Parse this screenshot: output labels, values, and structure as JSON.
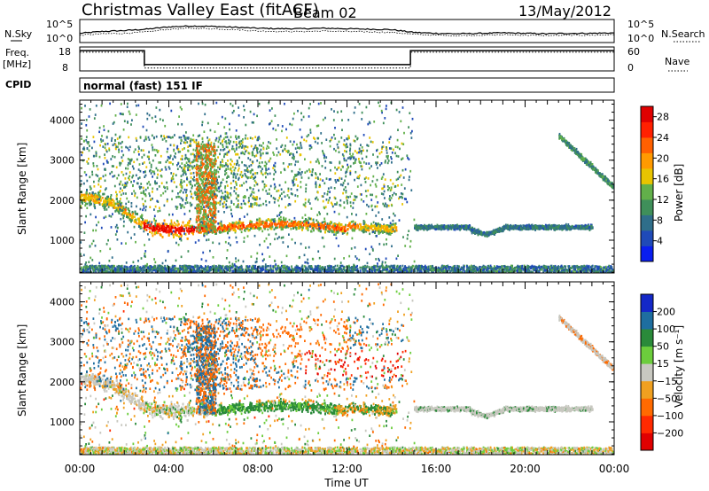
{
  "header": {
    "title": "Christmas Valley East (fitACF)",
    "beam": "Beam 02",
    "date": "13/May/2012"
  },
  "top_panels": {
    "nsky_label": "N.Sky",
    "nsky_ticks": [
      "10^5",
      "10^0"
    ],
    "nsearch_label": "N.Search",
    "nsearch_ticks": [
      "10^5",
      "10^0"
    ],
    "freq_label_1": "Freq.",
    "freq_label_2": "[MHz]",
    "freq_ticks": [
      "18",
      "8"
    ],
    "nave_label": "Nave",
    "nave_ticks": [
      "60",
      "0"
    ],
    "cpid_label": "CPID",
    "cpid_text": "normal (fast) 151 IF"
  },
  "chart_data": [
    {
      "type": "heatmap",
      "panel": "power",
      "ylabel": "Slant Range [km]",
      "xlabel": "Time UT",
      "x_ticks": [
        "00:00",
        "04:00",
        "08:00",
        "12:00",
        "16:00",
        "20:00",
        "00:00"
      ],
      "xlim": [
        0,
        24
      ],
      "y_ticks": [
        "1000",
        "2000",
        "3000",
        "4000"
      ],
      "ylim": [
        180,
        4500
      ],
      "colorbar": {
        "label": "Power [dB]",
        "ticks": [
          "4",
          "8",
          "12",
          "16",
          "20",
          "24",
          "28"
        ],
        "range": [
          0,
          30
        ],
        "colors": [
          "#0a1ef0",
          "#1f4ab8",
          "#2f6e8a",
          "#3f8f5a",
          "#62b04a",
          "#e8c400",
          "#ff9a00",
          "#ff6000",
          "#ff2000",
          "#e00000"
        ]
      }
    },
    {
      "type": "heatmap",
      "panel": "velocity",
      "ylabel": "Slant Range [km]",
      "xlabel": "Time UT",
      "x_ticks": [
        "00:00",
        "04:00",
        "08:00",
        "12:00",
        "16:00",
        "20:00",
        "00:00"
      ],
      "xlim": [
        0,
        24
      ],
      "y_ticks": [
        "1000",
        "2000",
        "3000",
        "4000"
      ],
      "ylim": [
        180,
        4500
      ],
      "colorbar": {
        "label": "Velocity [m s⁻¹]",
        "ticks": [
          "200",
          "100",
          "50",
          "15",
          "−15",
          "−50",
          "−100",
          "−200"
        ],
        "colors": [
          "#1428c8",
          "#1e6ea0",
          "#2a8a3a",
          "#6ccd3c",
          "#c8c8c0",
          "#f0a020",
          "#ff6a00",
          "#ff2a00",
          "#e00000"
        ]
      }
    },
    {
      "type": "line",
      "panel": "nsky-nsearch",
      "series": [
        {
          "values": [
            2.0,
            2.4,
            2.6,
            2.9,
            3.4,
            3.6,
            3.5,
            3.3,
            3.1,
            3.0,
            3.0,
            3.1,
            3.0,
            2.9,
            2.8,
            2.2,
            2.0,
            1.9,
            2.0,
            2.1,
            2.0,
            1.9,
            2.0,
            2.0,
            2.1
          ]
        },
        {
          "values": [
            1.6,
            1.9,
            2.0,
            2.3,
            2.9,
            3.1,
            3.0,
            2.8,
            2.5,
            2.4,
            2.4,
            2.5,
            2.4,
            2.3,
            2.2,
            1.8,
            1.6,
            1.5,
            1.6,
            1.7,
            1.6,
            1.5,
            1.6,
            1.6,
            1.7
          ]
        }
      ]
    },
    {
      "type": "line",
      "panel": "freq-nave",
      "series": [
        {
          "x": [
            0,
            2.9,
            2.9,
            14.85,
            14.85,
            24
          ],
          "values": [
            17,
            17,
            10.5,
            10.5,
            17,
            17
          ]
        },
        {
          "x": [
            0,
            2.9,
            2.9,
            14.85,
            14.85,
            24
          ],
          "values": [
            47,
            47,
            7,
            7,
            47,
            47
          ]
        }
      ]
    }
  ]
}
